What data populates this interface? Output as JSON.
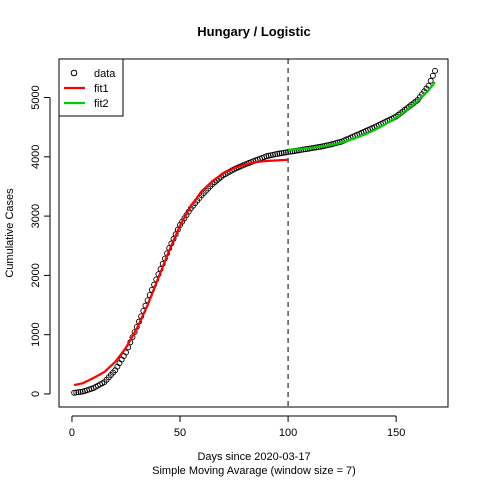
{
  "chart_data": {
    "type": "scatter",
    "title": "Hungary / Logistic",
    "xlabel": "Days since 2020-03-17",
    "xlabel2": "Simple Moving Avarage (window size = 7)",
    "ylabel": "Cumulative Cases",
    "xlim": [
      -6,
      174
    ],
    "ylim": [
      -220,
      5650
    ],
    "x_ticks": [
      0,
      50,
      100,
      150
    ],
    "y_ticks": [
      0,
      1000,
      2000,
      3000,
      4000,
      5000
    ],
    "vline_x": 100,
    "legend": {
      "position": "top-left",
      "entries": [
        {
          "label": "data",
          "symbol": "open-circle",
          "color": "#000000"
        },
        {
          "label": "fit1",
          "symbol": "line",
          "color": "#ff0000"
        },
        {
          "label": "fit2",
          "symbol": "line",
          "color": "#00cd00"
        }
      ]
    },
    "series": [
      {
        "name": "data",
        "kind": "points",
        "color": "#000000",
        "x_start": 1,
        "x_end": 168,
        "knots": [
          [
            1,
            20
          ],
          [
            5,
            40
          ],
          [
            10,
            100
          ],
          [
            15,
            200
          ],
          [
            20,
            400
          ],
          [
            25,
            700
          ],
          [
            30,
            1130
          ],
          [
            35,
            1580
          ],
          [
            40,
            2020
          ],
          [
            45,
            2460
          ],
          [
            50,
            2850
          ],
          [
            55,
            3130
          ],
          [
            60,
            3350
          ],
          [
            65,
            3540
          ],
          [
            70,
            3690
          ],
          [
            75,
            3790
          ],
          [
            80,
            3870
          ],
          [
            85,
            3940
          ],
          [
            90,
            4010
          ],
          [
            95,
            4050
          ],
          [
            100,
            4080
          ],
          [
            105,
            4110
          ],
          [
            110,
            4140
          ],
          [
            115,
            4170
          ],
          [
            120,
            4210
          ],
          [
            125,
            4260
          ],
          [
            130,
            4340
          ],
          [
            135,
            4420
          ],
          [
            140,
            4500
          ],
          [
            145,
            4590
          ],
          [
            150,
            4680
          ],
          [
            155,
            4820
          ],
          [
            160,
            4960
          ],
          [
            165,
            5200
          ],
          [
            168,
            5450
          ]
        ]
      },
      {
        "name": "fit1",
        "kind": "line",
        "color": "#ff0000",
        "knots": [
          [
            1,
            150
          ],
          [
            5,
            180
          ],
          [
            10,
            270
          ],
          [
            15,
            370
          ],
          [
            20,
            540
          ],
          [
            25,
            780
          ],
          [
            30,
            1100
          ],
          [
            35,
            1500
          ],
          [
            40,
            1960
          ],
          [
            45,
            2420
          ],
          [
            50,
            2840
          ],
          [
            55,
            3170
          ],
          [
            60,
            3420
          ],
          [
            65,
            3590
          ],
          [
            70,
            3720
          ],
          [
            75,
            3810
          ],
          [
            80,
            3870
          ],
          [
            85,
            3910
          ],
          [
            90,
            3930
          ],
          [
            95,
            3940
          ],
          [
            100,
            3950
          ]
        ]
      },
      {
        "name": "fit2",
        "kind": "line",
        "color": "#00cd00",
        "knots": [
          [
            100,
            4120
          ],
          [
            105,
            4130
          ],
          [
            110,
            4150
          ],
          [
            115,
            4170
          ],
          [
            120,
            4200
          ],
          [
            125,
            4240
          ],
          [
            130,
            4300
          ],
          [
            135,
            4370
          ],
          [
            140,
            4450
          ],
          [
            145,
            4550
          ],
          [
            150,
            4660
          ],
          [
            155,
            4790
          ],
          [
            160,
            4940
          ],
          [
            165,
            5120
          ],
          [
            168,
            5260
          ]
        ]
      }
    ]
  }
}
